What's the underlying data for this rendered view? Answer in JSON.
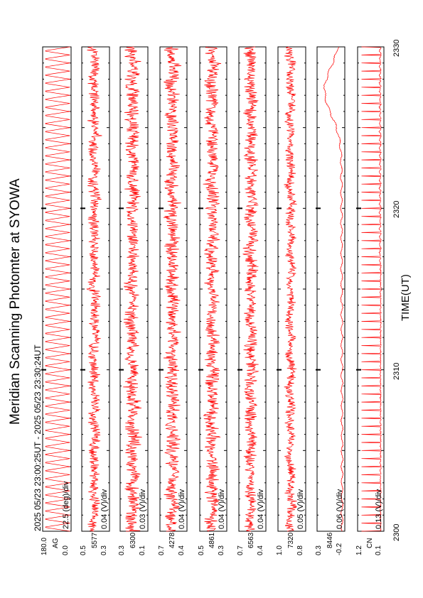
{
  "title": "Meridian Scanning Photomter at SYOWA",
  "header": {
    "range_text": "2025 05/23 23:00:25UT - 2025 05/23 23:30:24UT"
  },
  "x_axis": {
    "label": "TIME(UT)",
    "tick_labels": [
      "2300",
      "2310",
      "2320",
      "2330"
    ]
  },
  "chart_data": {
    "type": "line",
    "title": "Meridian Scanning Photomter at SYOWA",
    "xlabel": "TIME(UT)",
    "x_range_minutes": [
      0,
      30
    ],
    "x_ticks": [
      "2300",
      "2310",
      "2320",
      "2330"
    ],
    "line_color": "#ff0000",
    "series": [
      {
        "channel": "AG",
        "scale": "22.5 (deg)/div",
        "yticks": [
          "180.0",
          "0.0"
        ],
        "ylim": [
          0.0,
          180.0
        ],
        "mean": 90,
        "noise": 0.0,
        "scan_amplitude": 1.0
      },
      {
        "channel": "5577",
        "scale": "0.04 (V)/div",
        "yticks": [
          "0.5",
          "0.3"
        ],
        "ylim": [
          0.3,
          0.5
        ],
        "mean": 0.43,
        "noise": 0.14
      },
      {
        "channel": "6300",
        "scale": "0.03 (V)/div",
        "yticks": [
          "0.3",
          "0.1"
        ],
        "ylim": [
          0.1,
          0.3
        ],
        "mean": 0.22,
        "noise": 0.18
      },
      {
        "channel": "4278",
        "scale": "0.04 (V)/div",
        "yticks": [
          "0.7",
          "0.4"
        ],
        "ylim": [
          0.4,
          0.7
        ],
        "mean": 0.56,
        "noise": 0.18
      },
      {
        "channel": "4861",
        "scale": "0.04 (V)/div",
        "yticks": [
          "0.5",
          "0.3"
        ],
        "ylim": [
          0.3,
          0.5
        ],
        "mean": 0.44,
        "noise": 0.18
      },
      {
        "channel": "6563",
        "scale": "0.04 (V)/div",
        "yticks": [
          "0.7",
          "0.4"
        ],
        "ylim": [
          0.4,
          0.7
        ],
        "mean": 0.58,
        "noise": 0.16
      },
      {
        "channel": "7320",
        "scale": "0.05 (V)/div",
        "yticks": [
          "1.0",
          "0.8"
        ],
        "ylim": [
          0.8,
          1.0
        ],
        "mean": 0.9,
        "noise": 0.12
      },
      {
        "channel": "8446",
        "scale": "0.06 (V)/div",
        "yticks": [
          "0.3",
          "-0.2"
        ],
        "ylim": [
          -0.2,
          0.3
        ],
        "mean": -0.15,
        "noise": 0.015,
        "bump_center": 0.91,
        "bump_height": 0.3
      },
      {
        "channel": "CN",
        "scale": "0.13 (V)/div",
        "yticks": [
          "1.2",
          "0.1"
        ],
        "ylim": [
          0.1,
          1.2
        ],
        "mean": 0.35,
        "noise": 0.02,
        "spikes": true
      }
    ]
  }
}
